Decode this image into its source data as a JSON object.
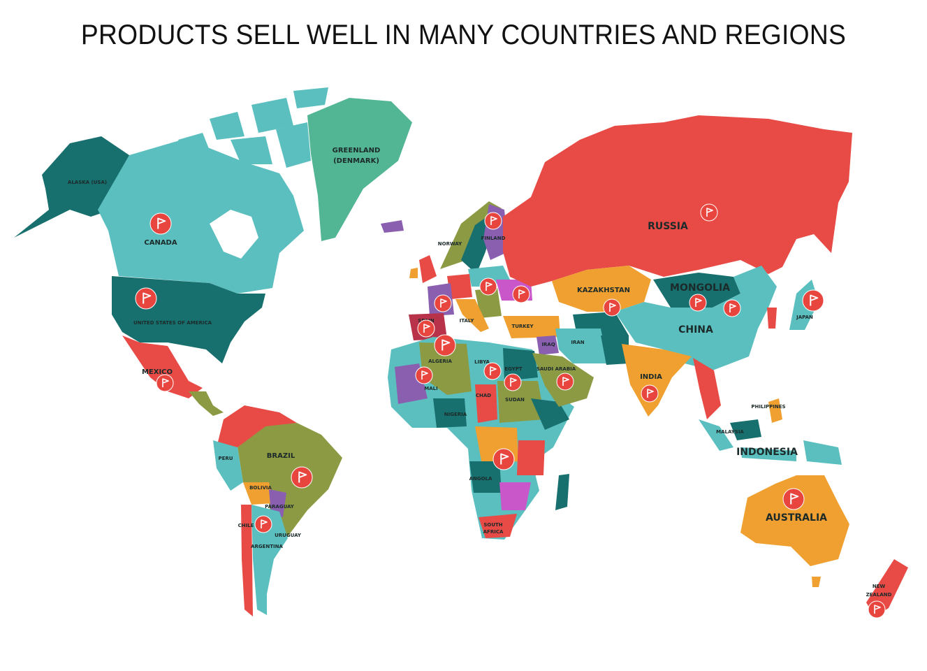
{
  "title": "PRODUCTS SELL WELL IN MANY COUNTRIES AND REGIONS",
  "colors": {
    "dark_teal": "#17706e",
    "light_teal": "#5bbfbf",
    "green": "#52b594",
    "red": "#e84a45",
    "orange": "#f0a030",
    "olive": "#8c9a43",
    "purple": "#8a5fb0",
    "magenta": "#c957c9",
    "marker": "#e8453f"
  },
  "labels": {
    "greenland": "GREENLAND",
    "greenland_sub": "(DENMARK)",
    "alaska": "ALASKA (USA)",
    "canada": "CANADA",
    "usa": "UNITED STATES OF AMERICA",
    "mexico": "MEXICO",
    "brazil": "BRAZIL",
    "peru": "PERU",
    "bolivia": "BOLIVIA",
    "paraguay": "PARAGUAY",
    "chile": "CHILE",
    "uruguay": "URUGUAY",
    "argentina": "ARGENTINA",
    "russia": "RUSSIA",
    "kazakhstan": "KAZAKHSTAN",
    "mongolia": "MONGOLIA",
    "china": "CHINA",
    "japan": "JAPAN",
    "india": "INDIA",
    "indonesia": "INDONESIA",
    "australia": "AUSTRALIA",
    "new_zealand_1": "NEW",
    "new_zealand_2": "ZEALAND",
    "finland": "FINLAND",
    "norway": "NORWAY",
    "spain": "SPAIN",
    "italy": "ITALY",
    "turkey": "TURKEY",
    "iraq": "IRAQ",
    "iran": "IRAN",
    "saudi": "SAUDI ARABIA",
    "algeria": "ALGERIA",
    "libya": "LIBYA",
    "egypt": "EGYPT",
    "mali": "MALI",
    "chad": "CHAD",
    "sudan": "SUDAN",
    "nigeria": "NIGERIA",
    "angola": "ANGOLA",
    "south_africa_1": "SOUTH",
    "south_africa_2": "AFRICA",
    "philippines": "PHILIPPINES",
    "malaysia": "MALAYSIA"
  },
  "markers": [
    "Canada",
    "United States of America",
    "Mexico",
    "Brazil",
    "Chile",
    "Finland",
    "Poland",
    "Ukraine",
    "France",
    "Spain",
    "Algeria",
    "Mali",
    "Libya",
    "Egypt",
    "Saudi Arabia",
    "Tanzania",
    "Russia",
    "Kazakhstan",
    "Mongolia",
    "China",
    "Japan",
    "India",
    "Australia",
    "New Zealand"
  ],
  "marker_icon": "flag-icon"
}
